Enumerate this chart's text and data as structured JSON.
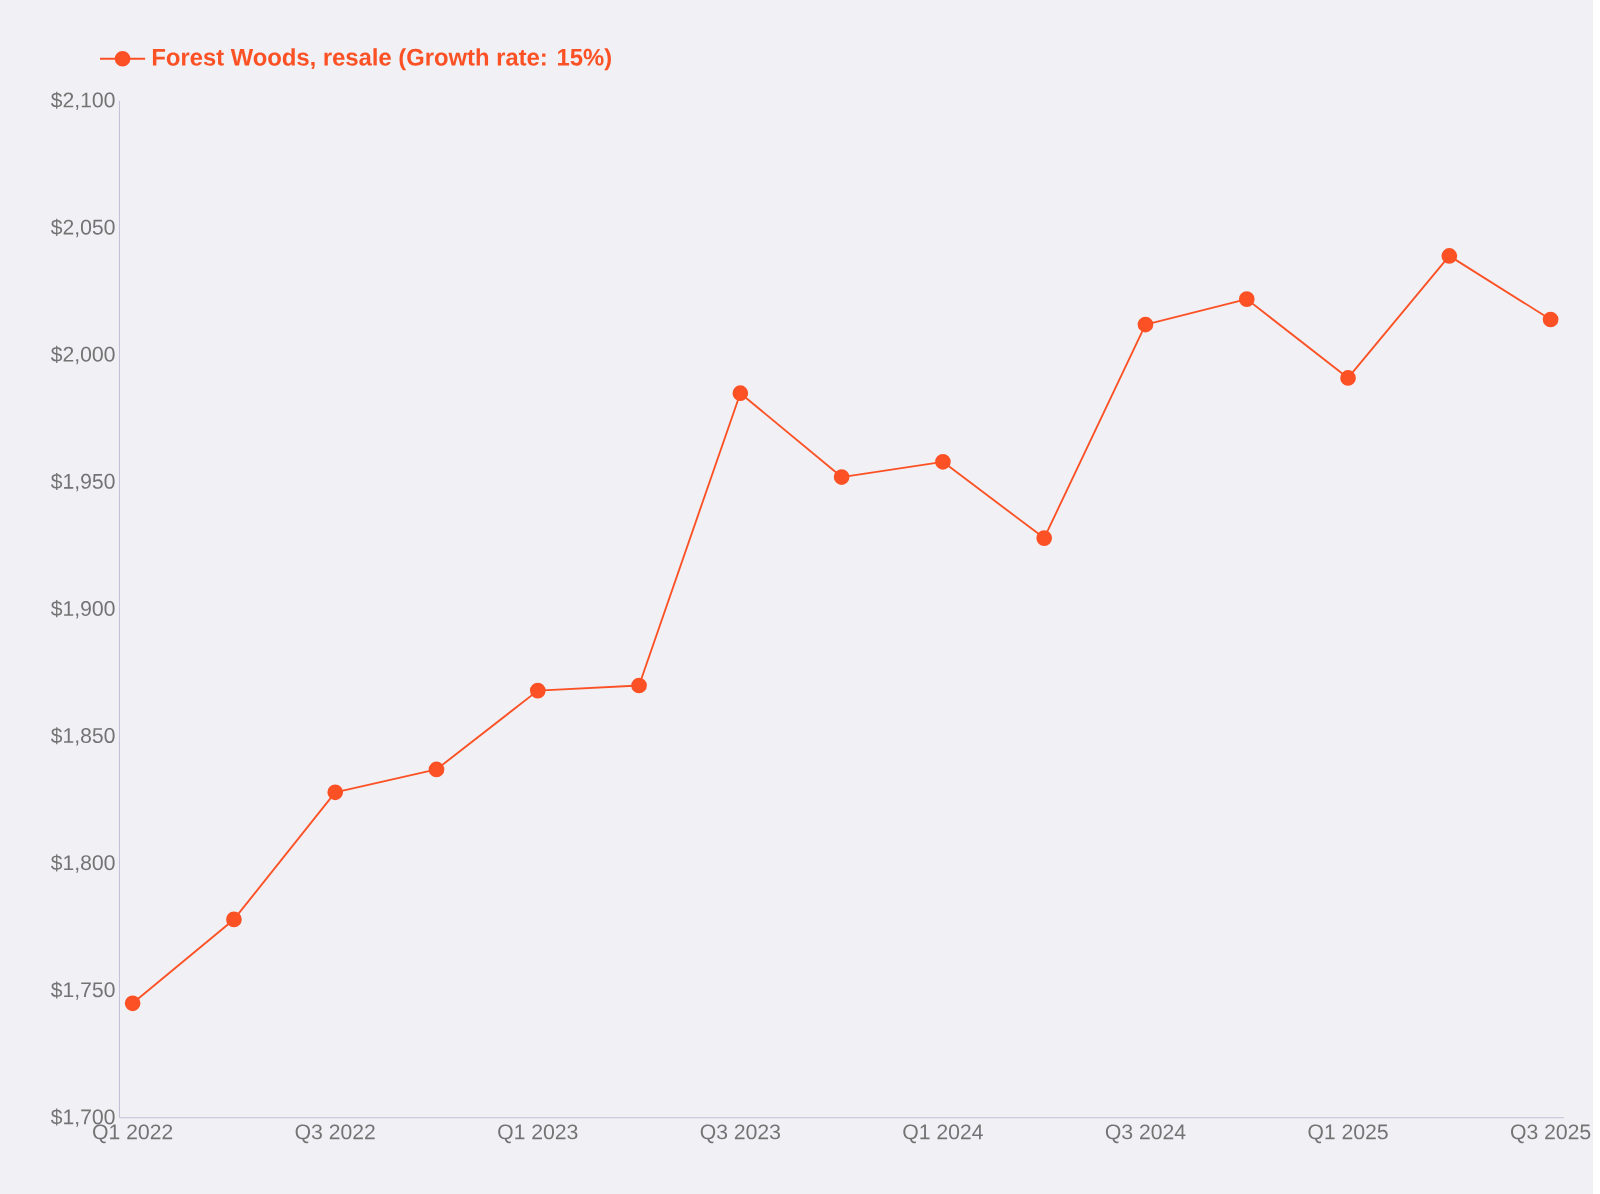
{
  "chart_data": {
    "type": "line",
    "categories": [
      "Q1 2022",
      null,
      "Q3 2022",
      null,
      "Q1 2023",
      null,
      "Q3 2023",
      null,
      "Q1 2024",
      null,
      "Q3 2024",
      null,
      "Q1 2025",
      null,
      "Q3 2025"
    ],
    "series": [
      {
        "name": "Forest Woods, resale (Growth rate: 15%)",
        "color": "#fc5125",
        "values": [
          1745,
          1778,
          1828,
          1837,
          1868,
          1870,
          1985,
          1952,
          1958,
          1928,
          2012,
          2022,
          1991,
          2039,
          2014
        ]
      }
    ],
    "ylim": [
      1700,
      2100
    ],
    "yticks": [
      {
        "value": 1700,
        "label": "$1,700"
      },
      {
        "value": 1750,
        "label": "$1,750"
      },
      {
        "value": 1800,
        "label": "$1,800"
      },
      {
        "value": 1850,
        "label": "$1,850"
      },
      {
        "value": 1900,
        "label": "$1,900"
      },
      {
        "value": 1950,
        "label": "$1,950"
      },
      {
        "value": 2000,
        "label": "$2,000"
      },
      {
        "value": 2050,
        "label": "$2,050"
      },
      {
        "value": 2100,
        "label": "$2,100"
      }
    ],
    "grid": false,
    "legend": "top left",
    "marker": "circle",
    "line_style": "solid"
  }
}
